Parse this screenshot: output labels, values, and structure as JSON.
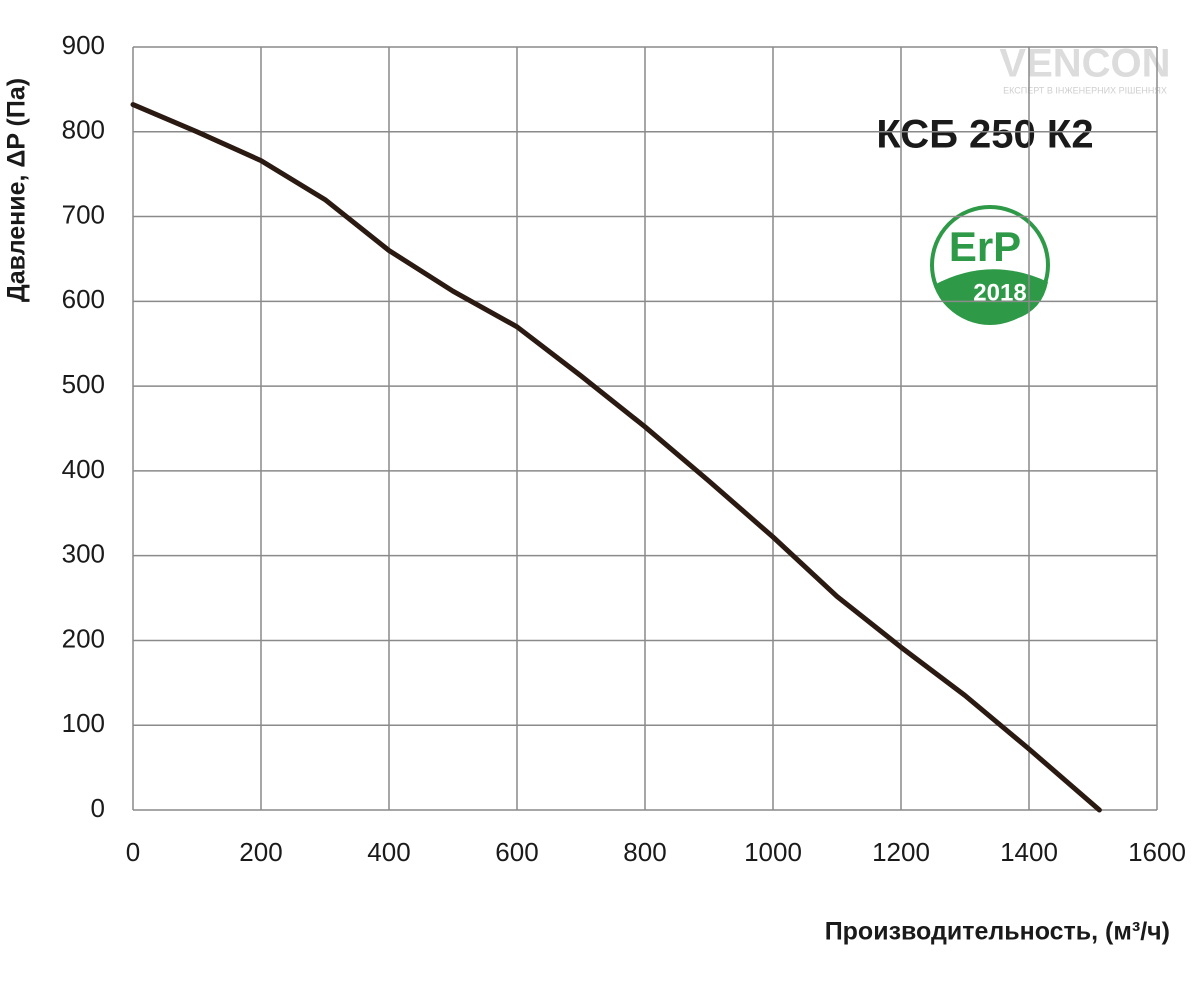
{
  "chart_data": {
    "type": "line",
    "title": "КСБ 250 К2",
    "x_label": "Производительность, (м³/ч)",
    "y_label": "Давление, ΔP (Па)",
    "x": [
      0,
      100,
      200,
      300,
      400,
      500,
      600,
      700,
      800,
      900,
      1000,
      1100,
      1200,
      1300,
      1400,
      1510
    ],
    "values": [
      832,
      800,
      766,
      720,
      660,
      612,
      570,
      512,
      452,
      388,
      322,
      252,
      192,
      135,
      72,
      0
    ],
    "color": "#2a1a12",
    "xlim": [
      0,
      1600
    ],
    "xticks": [
      0,
      200,
      400,
      600,
      800,
      1000,
      1200,
      1400,
      1600
    ],
    "ylim": [
      0,
      900
    ],
    "yticks": [
      0,
      100,
      200,
      300,
      400,
      500,
      600,
      700,
      800,
      900
    ],
    "grid": true,
    "logo": {
      "name": "VENCON",
      "tagline": "ЕКСПЕРТ В ІНЖЕНЕРНИХ РІШЕННЯХ"
    },
    "badge": {
      "label": "ErP",
      "year": "2018"
    }
  }
}
